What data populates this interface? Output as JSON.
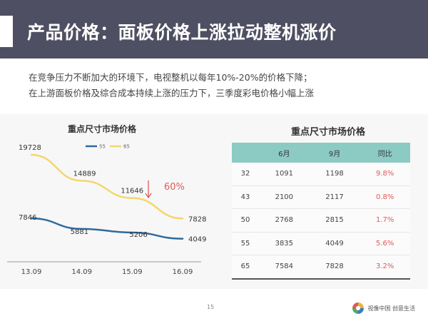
{
  "slide": {
    "title": "产品价格：面板价格上涨拉动整机涨价",
    "intro_lines": [
      "在竞争压力不断加大的环境下，电视整机以每年10%-20%的价格下降；",
      "在上游面板价格及综合成本持续上涨的压力下，三季度彩电价格小幅上涨"
    ],
    "page_number": "15",
    "brand": "视像中国 创意生活"
  },
  "colors": {
    "title_bar": "#4f4f63",
    "series_55": "#2e6a9e",
    "series_65": "#f4d66b",
    "table_header": "#8ccac4",
    "highlight": "#e05a59"
  },
  "chart_data": {
    "type": "line",
    "title": "重点尺寸市场价格",
    "categories": [
      "13.09",
      "14.09",
      "15.09",
      "16.09"
    ],
    "series": [
      {
        "name": "55",
        "values": [
          7846,
          5881,
          5206,
          4049
        ]
      },
      {
        "name": "65",
        "values": [
          19728,
          14889,
          11646,
          7828
        ]
      }
    ],
    "annotation": {
      "text": "60%",
      "icon": "down-arrow-icon"
    },
    "ylim": [
      0,
      22000
    ],
    "grid": false,
    "legend_position": "top"
  },
  "table": {
    "title": "重点尺寸市场价格",
    "headers": [
      "",
      "6月",
      "9月",
      "同比"
    ],
    "rows": [
      {
        "size": "32",
        "jun": "1091",
        "sep": "1198",
        "change": "9.8%"
      },
      {
        "size": "43",
        "jun": "2100",
        "sep": "2117",
        "change": "0.8%"
      },
      {
        "size": "50",
        "jun": "2768",
        "sep": "2815",
        "change": "1.7%"
      },
      {
        "size": "55",
        "jun": "3835",
        "sep": "4049",
        "change": "5.6%"
      },
      {
        "size": "65",
        "jun": "7584",
        "sep": "7828",
        "change": "3.2%"
      }
    ]
  }
}
